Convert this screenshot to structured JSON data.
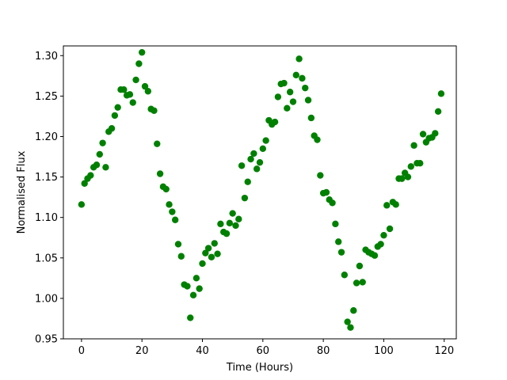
{
  "chart_data": {
    "type": "scatter",
    "title": "",
    "xlabel": "Time (Hours)",
    "ylabel": "Normalised Flux",
    "xlim": [
      -6,
      124
    ],
    "ylim": [
      0.95,
      1.312
    ],
    "xticks": [
      0,
      20,
      40,
      60,
      80,
      100,
      120
    ],
    "yticks": [
      0.95,
      1.0,
      1.05,
      1.1,
      1.15,
      1.2,
      1.25,
      1.3
    ],
    "xtick_labels": [
      "0",
      "20",
      "40",
      "60",
      "80",
      "100",
      "120"
    ],
    "ytick_labels": [
      "0.95",
      "1.00",
      "1.05",
      "1.10",
      "1.15",
      "1.20",
      "1.25",
      "1.30"
    ],
    "grid": false,
    "marker_color": "#008000",
    "series": [
      {
        "x": [
          0,
          1,
          2,
          3,
          4,
          5,
          6,
          7,
          8,
          9,
          10,
          11,
          12,
          13,
          14,
          15,
          16,
          17,
          18,
          19,
          20,
          21,
          22,
          23,
          24,
          25,
          26,
          27,
          28,
          29,
          30,
          31,
          32,
          33,
          34,
          35,
          36,
          37,
          38,
          39,
          40,
          41,
          42,
          43,
          44,
          45,
          46,
          47,
          48,
          49,
          50,
          51,
          52,
          53,
          54,
          55,
          56,
          57,
          58,
          59,
          60,
          61,
          62,
          63,
          64,
          65,
          66,
          67,
          68,
          69,
          70,
          71,
          72,
          73,
          74,
          75,
          76,
          77,
          78,
          79,
          80,
          81,
          82,
          83,
          84,
          85,
          86,
          87,
          88,
          89,
          90,
          91,
          92,
          93,
          94,
          95,
          96,
          97,
          98,
          99,
          100,
          101,
          102,
          103,
          104,
          105,
          106,
          107,
          108,
          109,
          110,
          111,
          112,
          113,
          114,
          115,
          116,
          117,
          118,
          119
        ],
        "y": [
          1.116,
          1.142,
          1.148,
          1.152,
          1.162,
          1.165,
          1.178,
          1.192,
          1.162,
          1.206,
          1.21,
          1.226,
          1.236,
          1.258,
          1.258,
          1.251,
          1.252,
          1.242,
          1.27,
          1.29,
          1.304,
          1.262,
          1.256,
          1.234,
          1.232,
          1.191,
          1.154,
          1.138,
          1.135,
          1.116,
          1.107,
          1.097,
          1.067,
          1.052,
          1.017,
          1.015,
          0.976,
          1.004,
          1.025,
          1.012,
          1.043,
          1.056,
          1.062,
          1.051,
          1.068,
          1.055,
          1.092,
          1.082,
          1.08,
          1.093,
          1.105,
          1.09,
          1.098,
          1.164,
          1.124,
          1.144,
          1.172,
          1.179,
          1.16,
          1.168,
          1.185,
          1.195,
          1.22,
          1.215,
          1.218,
          1.249,
          1.265,
          1.266,
          1.235,
          1.255,
          1.243,
          1.276,
          1.296,
          1.272,
          1.26,
          1.245,
          1.223,
          1.201,
          1.196,
          1.152,
          1.13,
          1.131,
          1.122,
          1.118,
          1.092,
          1.07,
          1.057,
          1.029,
          0.971,
          0.964,
          0.985,
          1.019,
          1.04,
          1.02,
          1.06,
          1.057,
          1.055,
          1.053,
          1.064,
          1.067,
          1.078,
          1.115,
          1.086,
          1.119,
          1.116,
          1.148,
          1.148,
          1.155,
          1.15,
          1.163,
          1.189,
          1.167,
          1.167,
          1.203,
          1.193,
          1.198,
          1.199,
          1.204,
          1.231,
          1.253
        ]
      }
    ]
  }
}
